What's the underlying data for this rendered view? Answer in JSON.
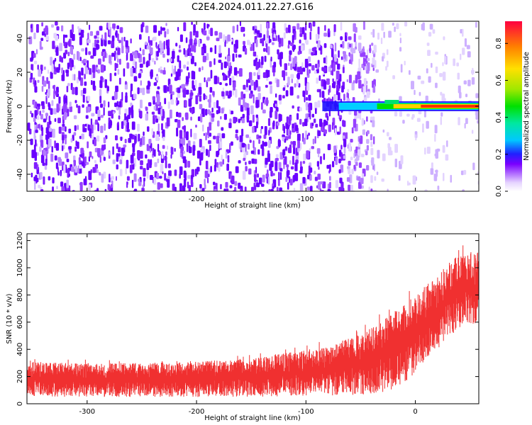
{
  "title": "C2E4.2024.011.22.27.G16",
  "chart_data": [
    {
      "type": "heatmap",
      "name": "spectrogram",
      "xlabel": "Height of straight line (km)",
      "ylabel": "Frequency (Hz)",
      "xlim": [
        -355,
        58
      ],
      "ylim": [
        -50,
        50
      ],
      "xticks": [
        -300,
        -200,
        -100,
        0
      ],
      "yticks": [
        -40,
        -20,
        0,
        20,
        40
      ],
      "colorbar": {
        "label": "Normalized spectral amplitude",
        "range": [
          0.0,
          0.92
        ],
        "ticks": [
          0.0,
          0.2,
          0.4,
          0.6,
          0.8
        ],
        "colormap": "rainbow-white-to-red"
      },
      "description_values": {
        "noise_region_x": [
          -355,
          -38
        ],
        "noise_amplitude_level": 0.1,
        "signal_x_start": -85,
        "signal_frequency_hz": 0,
        "signal_peak_amplitude": 0.92
      }
    },
    {
      "type": "line",
      "name": "snr",
      "xlabel": "Height of straight line (km)",
      "ylabel": "SNR (10 * v/v)",
      "xlim": [
        -355,
        58
      ],
      "ylim": [
        0,
        1250
      ],
      "xticks": [
        -300,
        -200,
        -100,
        0
      ],
      "yticks": [
        0,
        200,
        400,
        600,
        800,
        1000,
        1200
      ],
      "series": [
        {
          "name": "SNR",
          "color": "#f03030",
          "envelope_x": [
            -355,
            -300,
            -250,
            -200,
            -150,
            -100,
            -70,
            -40,
            -20,
            0,
            20,
            40,
            58
          ],
          "envelope_low": [
            50,
            50,
            50,
            50,
            50,
            60,
            60,
            70,
            100,
            220,
            400,
            550,
            600
          ],
          "envelope_high": [
            330,
            320,
            320,
            330,
            360,
            420,
            480,
            600,
            720,
            850,
            1000,
            1150,
            1150
          ]
        }
      ]
    }
  ]
}
